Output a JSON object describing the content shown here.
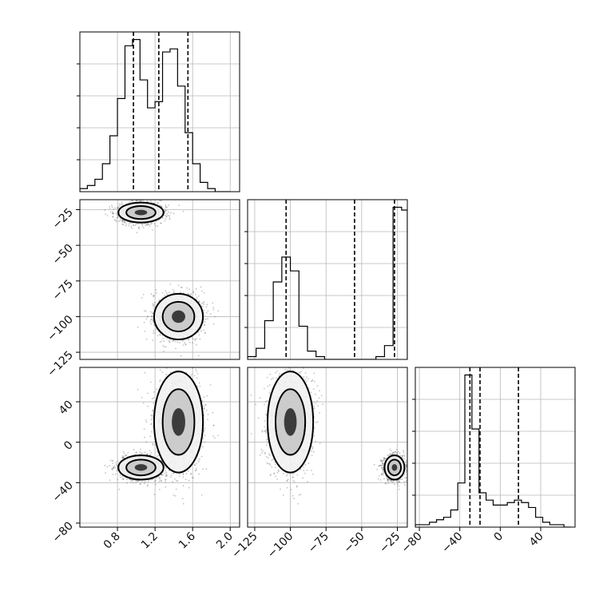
{
  "chart_data": {
    "type": "corner",
    "grid": true,
    "params": [
      {
        "axis_range": [
          0.4,
          2.1
        ],
        "ticks": [
          0.8,
          1.2,
          1.6,
          2.0
        ],
        "tick_labels": [
          "0.8",
          "1.2",
          "1.6",
          "2.0"
        ],
        "quantiles": [
          0.97,
          1.24,
          1.55
        ],
        "hist": {
          "edges": [
            0.4,
            0.48,
            0.56,
            0.64,
            0.72,
            0.8,
            0.88,
            0.96,
            1.04,
            1.12,
            1.2,
            1.28,
            1.36,
            1.44,
            1.52,
            1.6,
            1.68,
            1.76,
            1.84,
            1.92,
            2.0
          ],
          "counts": [
            1,
            2,
            4,
            9,
            18,
            30,
            47,
            49,
            36,
            27,
            29,
            45,
            46,
            34,
            19,
            9,
            3,
            1,
            0,
            0
          ]
        }
      },
      {
        "axis_range": [
          -130,
          -18
        ],
        "ticks": [
          -25,
          -50,
          -75,
          -100,
          -125
        ],
        "tick_labels": [
          "−25",
          "−50",
          "−75",
          "−100",
          "−125"
        ],
        "x_ticks": [
          -125,
          -100,
          -75,
          -50,
          -25
        ],
        "x_tick_labels": [
          "−125",
          "−100",
          "−75",
          "−50",
          "−25"
        ],
        "quantiles": [
          -103,
          -55,
          -27
        ],
        "hist": {
          "edges": [
            -130,
            -124,
            -118,
            -112,
            -106,
            -100,
            -94,
            -88,
            -82,
            -76,
            -70,
            -64,
            -58,
            -52,
            -46,
            -40,
            -34,
            -28,
            -22,
            -18
          ],
          "counts": [
            1,
            4,
            14,
            28,
            37,
            32,
            12,
            3,
            1,
            0,
            0,
            0,
            0,
            0,
            0,
            1,
            5,
            55,
            54
          ]
        }
      },
      {
        "axis_range": [
          -84,
          74
        ],
        "ticks": [
          40,
          0,
          -40,
          -80
        ],
        "tick_labels": [
          "40",
          "0",
          "−40",
          "−80"
        ],
        "x_ticks": [
          -80,
          -40,
          0,
          40
        ],
        "x_tick_labels": [
          "−80",
          "−40",
          "0",
          "40"
        ],
        "quantiles": [
          -30,
          -20,
          18
        ],
        "hist": {
          "edges": [
            -84,
            -77,
            -70,
            -63,
            -56,
            -49,
            -42,
            -35,
            -28,
            -21,
            -14,
            -7,
            0,
            7,
            14,
            21,
            28,
            35,
            42,
            49,
            56,
            63,
            70
          ],
          "counts": [
            1,
            1,
            2,
            3,
            4,
            7,
            18,
            62,
            40,
            14,
            11,
            9,
            9,
            10,
            11,
            10,
            8,
            4,
            2,
            1,
            1,
            0
          ]
        }
      }
    ],
    "modes": [
      {
        "p0": 1.05,
        "p1": -27,
        "p2": -25,
        "s0": 0.12,
        "s1": 3.5,
        "s2": 6,
        "weight": 0.5
      },
      {
        "p0": 1.45,
        "p1": -100,
        "p2": 20,
        "s0": 0.13,
        "s1": 8,
        "s2": 25,
        "weight": 0.5
      }
    ]
  }
}
